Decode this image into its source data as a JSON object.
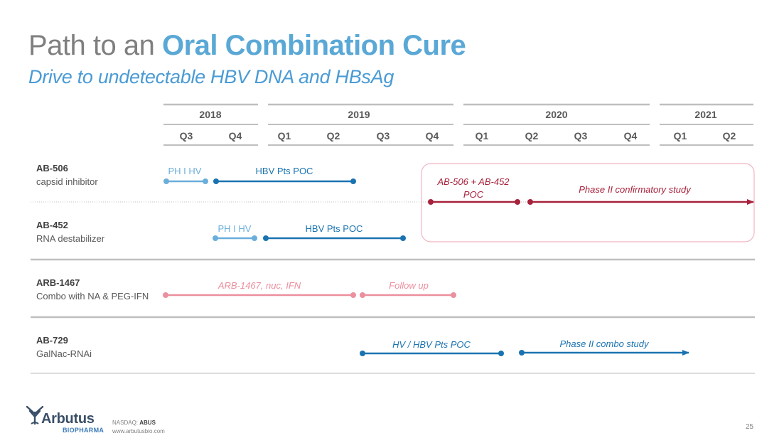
{
  "title": {
    "prefix": "Path to an ",
    "emphasis": "Oral Combination Cure"
  },
  "subtitle": "Drive to undetectable HBV DNA and HBsAg",
  "timeline": {
    "years": [
      "2018",
      "2019",
      "2020",
      "2021"
    ],
    "quarters": [
      "Q3",
      "Q4",
      "Q1",
      "Q2",
      "Q3",
      "Q4",
      "Q1",
      "Q2",
      "Q3",
      "Q4",
      "Q1",
      "Q2"
    ]
  },
  "rows": [
    {
      "name": "AB-506",
      "desc": "capsid inhibitor"
    },
    {
      "name": "AB-452",
      "desc": "RNA destabilizer"
    },
    {
      "name": "ARB-1467",
      "desc": "Combo with NA & PEG-IFN"
    },
    {
      "name": "AB-729",
      "desc": "GalNac-RNAi"
    }
  ],
  "bars": [
    {
      "label": "PH I HV",
      "color": "#6aaedb",
      "italic": false
    },
    {
      "label": "HBV Pts POC",
      "color": "#1a73b0",
      "italic": false
    },
    {
      "label": "PH I HV",
      "color": "#6aaedb",
      "italic": false
    },
    {
      "label": "HBV Pts POC",
      "color": "#1a73b0",
      "italic": false
    },
    {
      "label": "AB-506 + AB-452",
      "label2": "POC",
      "color": "#a8223c",
      "italic": true
    },
    {
      "label": "Phase II confirmatory study",
      "color": "#a8223c",
      "italic": true
    },
    {
      "label": "ARB-1467, nuc, IFN",
      "color": "#ec8f9e",
      "italic": true
    },
    {
      "label": "Follow up",
      "color": "#ec8f9e",
      "italic": true
    },
    {
      "label": "HV / HBV Pts POC",
      "color": "#1a73b0",
      "italic": true
    },
    {
      "label": "Phase II combo study",
      "color": "#1a73b0",
      "italic": true
    }
  ],
  "colors": {
    "title_gray": "#7f7f7f",
    "accent_blue": "#5aa8d6",
    "dark_blue": "#1a73b0",
    "light_blue": "#6aaedb",
    "crimson": "#a8223c",
    "pink": "#ec8f9e"
  },
  "footer": {
    "logo_word": "Arbutus",
    "logo_sub": "BIOPHARMA",
    "ticker_label": "NASDAQ:",
    "ticker": "ABUS",
    "website": "www.arbutusbio.com",
    "page_number": "25"
  }
}
